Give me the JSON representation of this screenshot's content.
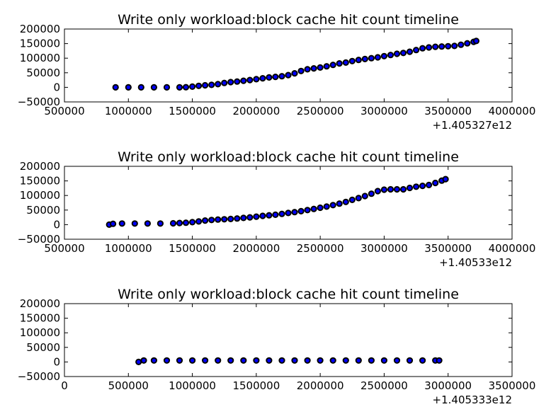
{
  "chart_data": [
    {
      "type": "scatter",
      "title": "Write only workload:block cache hit count timeline",
      "xlabel": "",
      "ylabel": "",
      "x_offset_label": "+1.405327e12",
      "xlim": [
        500000,
        4000000
      ],
      "ylim": [
        -50000,
        200000
      ],
      "xticks": [
        500000,
        1000000,
        1500000,
        2000000,
        2500000,
        3000000,
        3500000,
        4000000
      ],
      "yticks": [
        -50000,
        0,
        50000,
        100000,
        150000,
        200000
      ],
      "grid": false,
      "marker_color": "#0000ff",
      "marker_edge": "#000000",
      "points": [
        [
          900000,
          0
        ],
        [
          1000000,
          0
        ],
        [
          1100000,
          0
        ],
        [
          1200000,
          0
        ],
        [
          1300000,
          0
        ],
        [
          1400000,
          0
        ],
        [
          1450000,
          500
        ],
        [
          1500000,
          2500
        ],
        [
          1550000,
          5000
        ],
        [
          1600000,
          7000
        ],
        [
          1650000,
          8500
        ],
        [
          1700000,
          11000
        ],
        [
          1750000,
          15000
        ],
        [
          1800000,
          18000
        ],
        [
          1850000,
          20000
        ],
        [
          1900000,
          22500
        ],
        [
          1950000,
          25000
        ],
        [
          2000000,
          28000
        ],
        [
          2050000,
          31000
        ],
        [
          2100000,
          34000
        ],
        [
          2150000,
          36000
        ],
        [
          2200000,
          38000
        ],
        [
          2250000,
          42000
        ],
        [
          2300000,
          48000
        ],
        [
          2350000,
          56000
        ],
        [
          2400000,
          62000
        ],
        [
          2450000,
          65000
        ],
        [
          2500000,
          68000
        ],
        [
          2550000,
          72000
        ],
        [
          2600000,
          77000
        ],
        [
          2650000,
          82000
        ],
        [
          2700000,
          85000
        ],
        [
          2750000,
          90000
        ],
        [
          2800000,
          94000
        ],
        [
          2850000,
          97000
        ],
        [
          2900000,
          100000
        ],
        [
          2950000,
          103000
        ],
        [
          3000000,
          107000
        ],
        [
          3050000,
          111000
        ],
        [
          3100000,
          115000
        ],
        [
          3150000,
          118000
        ],
        [
          3200000,
          122000
        ],
        [
          3250000,
          128000
        ],
        [
          3300000,
          134000
        ],
        [
          3350000,
          137000
        ],
        [
          3400000,
          139000
        ],
        [
          3450000,
          140000
        ],
        [
          3500000,
          141000
        ],
        [
          3550000,
          142000
        ],
        [
          3600000,
          146000
        ],
        [
          3650000,
          151000
        ],
        [
          3700000,
          156000
        ],
        [
          3720000,
          159000
        ]
      ]
    },
    {
      "type": "scatter",
      "title": "Write only workload:block cache hit count timeline",
      "xlabel": "",
      "ylabel": "",
      "x_offset_label": "+1.40533e12",
      "xlim": [
        500000,
        4000000
      ],
      "ylim": [
        -50000,
        200000
      ],
      "xticks": [
        500000,
        1000000,
        1500000,
        2000000,
        2500000,
        3000000,
        3500000,
        4000000
      ],
      "yticks": [
        -50000,
        0,
        50000,
        100000,
        150000,
        200000
      ],
      "grid": false,
      "marker_color": "#0000ff",
      "marker_edge": "#000000",
      "points": [
        [
          850000,
          0
        ],
        [
          880000,
          3000
        ],
        [
          950000,
          4000
        ],
        [
          1050000,
          4000
        ],
        [
          1150000,
          4000
        ],
        [
          1250000,
          4000
        ],
        [
          1350000,
          4500
        ],
        [
          1400000,
          5500
        ],
        [
          1450000,
          6500
        ],
        [
          1500000,
          8500
        ],
        [
          1550000,
          11000
        ],
        [
          1600000,
          14000
        ],
        [
          1650000,
          16000
        ],
        [
          1700000,
          17500
        ],
        [
          1750000,
          18500
        ],
        [
          1800000,
          19500
        ],
        [
          1850000,
          21000
        ],
        [
          1900000,
          23000
        ],
        [
          1950000,
          25000
        ],
        [
          2000000,
          27500
        ],
        [
          2050000,
          30000
        ],
        [
          2100000,
          32000
        ],
        [
          2150000,
          34000
        ],
        [
          2200000,
          37000
        ],
        [
          2250000,
          40000
        ],
        [
          2300000,
          43000
        ],
        [
          2350000,
          46000
        ],
        [
          2400000,
          50000
        ],
        [
          2450000,
          54000
        ],
        [
          2500000,
          58000
        ],
        [
          2550000,
          62000
        ],
        [
          2600000,
          67000
        ],
        [
          2650000,
          72000
        ],
        [
          2700000,
          78000
        ],
        [
          2750000,
          85000
        ],
        [
          2800000,
          91000
        ],
        [
          2850000,
          98000
        ],
        [
          2900000,
          106000
        ],
        [
          2950000,
          115000
        ],
        [
          3000000,
          120000
        ],
        [
          3050000,
          121000
        ],
        [
          3100000,
          121000
        ],
        [
          3150000,
          121000
        ],
        [
          3200000,
          126000
        ],
        [
          3250000,
          130000
        ],
        [
          3300000,
          133000
        ],
        [
          3350000,
          136000
        ],
        [
          3400000,
          143000
        ],
        [
          3450000,
          151000
        ],
        [
          3480000,
          156000
        ]
      ]
    },
    {
      "type": "scatter",
      "title": "Write only workload:block cache hit count timeline",
      "xlabel": "",
      "ylabel": "",
      "x_offset_label": "+1.405333e12",
      "xlim": [
        0,
        3500000
      ],
      "ylim": [
        -50000,
        200000
      ],
      "xticks": [
        0,
        500000,
        1000000,
        1500000,
        2000000,
        2500000,
        3000000,
        3500000
      ],
      "yticks": [
        -50000,
        0,
        50000,
        100000,
        150000,
        200000
      ],
      "grid": false,
      "marker_color": "#0000ff",
      "marker_edge": "#000000",
      "points": [
        [
          580000,
          0
        ],
        [
          620000,
          5000
        ],
        [
          700000,
          5000
        ],
        [
          800000,
          5000
        ],
        [
          900000,
          5000
        ],
        [
          1000000,
          5000
        ],
        [
          1100000,
          5000
        ],
        [
          1200000,
          5000
        ],
        [
          1300000,
          5000
        ],
        [
          1400000,
          5000
        ],
        [
          1500000,
          5000
        ],
        [
          1600000,
          5000
        ],
        [
          1700000,
          5000
        ],
        [
          1800000,
          5000
        ],
        [
          1900000,
          5000
        ],
        [
          2000000,
          5000
        ],
        [
          2100000,
          5000
        ],
        [
          2200000,
          5000
        ],
        [
          2300000,
          5000
        ],
        [
          2400000,
          5000
        ],
        [
          2500000,
          5000
        ],
        [
          2600000,
          5000
        ],
        [
          2700000,
          5000
        ],
        [
          2800000,
          5000
        ],
        [
          2900000,
          5000
        ],
        [
          2930000,
          5000
        ]
      ]
    }
  ]
}
